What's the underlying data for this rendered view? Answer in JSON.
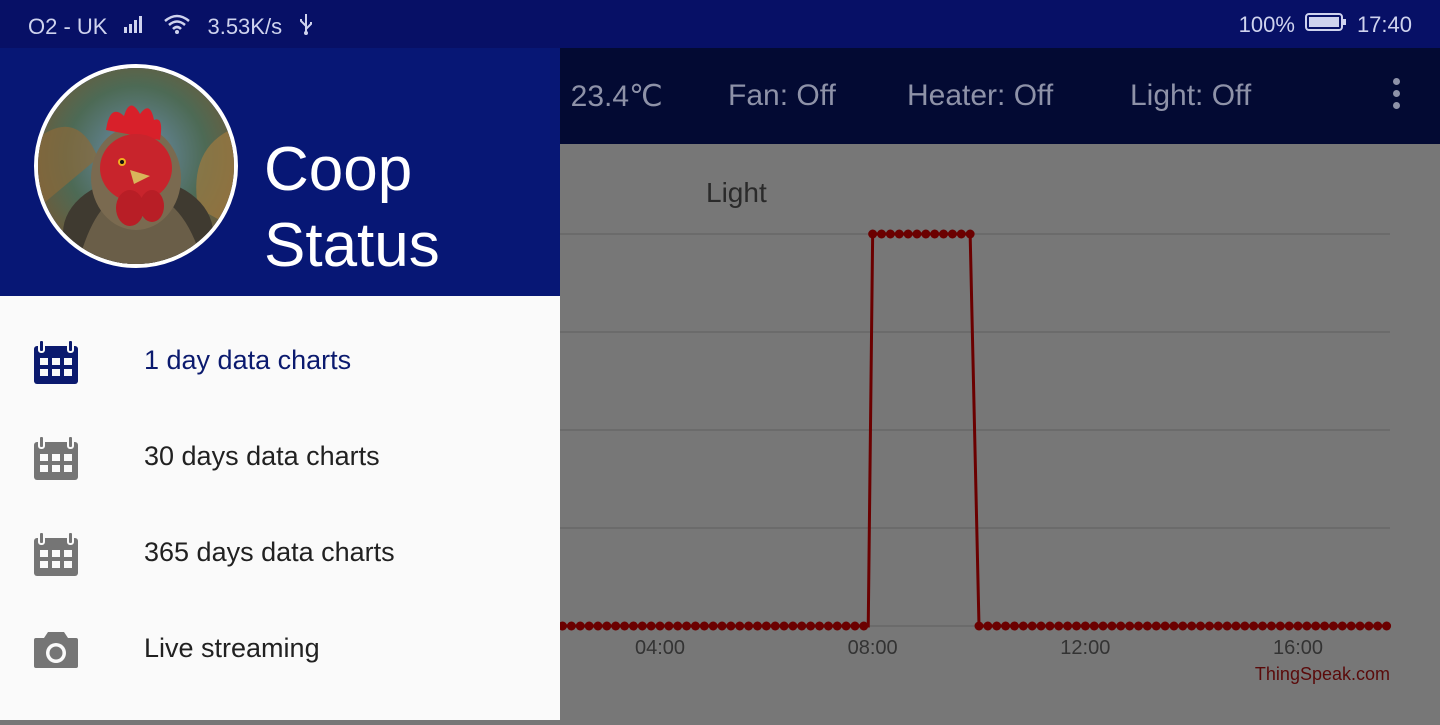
{
  "status_bar": {
    "carrier": "O2 - UK",
    "speed": "3.53K/s",
    "battery": "100%",
    "time": "17:40"
  },
  "toolbar": {
    "temp": ": 23.4℃",
    "fan": "Fan: Off",
    "heater": "Heater: Off",
    "light": "Light: Off"
  },
  "drawer": {
    "title_line1": "Coop",
    "title_line2": "Status",
    "items": [
      {
        "label": "1 day data charts",
        "icon": "calendar-icon",
        "active": true
      },
      {
        "label": "30 days data charts",
        "icon": "calendar-icon",
        "active": false
      },
      {
        "label": "365 days data charts",
        "icon": "calendar-icon",
        "active": false
      },
      {
        "label": "Live streaming",
        "icon": "camera-icon",
        "active": false
      }
    ]
  },
  "colors": {
    "primary_dark": "#071066",
    "drawer_header": "#071775",
    "accent": "#0b1a6e",
    "series": "#8b0000"
  },
  "chart_data": {
    "type": "line",
    "title": "Light",
    "x_ticks": [
      "04:00",
      "08:00",
      "12:00",
      "16:00"
    ],
    "xlim": [
      "02:00",
      "17:40"
    ],
    "ylim": [
      0,
      1
    ],
    "watermark": "ThingSpeak.com",
    "series": [
      {
        "points": [
          [
            "02:00",
            0
          ],
          [
            "07:55",
            0
          ],
          [
            "08:00",
            1
          ],
          [
            "09:50",
            1
          ],
          [
            "10:00",
            0
          ],
          [
            "17:40",
            0
          ]
        ]
      }
    ]
  }
}
